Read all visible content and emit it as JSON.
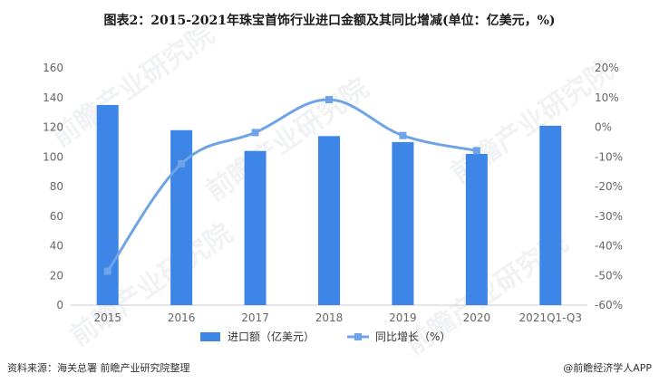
{
  "title": "图表2：2015-2021年珠宝首饰行业进口金额及其同比增减(单位：亿美元，%)",
  "source": "资料来源：海关总署 前瞻产业研究院整理",
  "brand": "@前瞻经济学人APP",
  "watermark": "前瞻产业研究院",
  "colors": {
    "bar": "#3d85e6",
    "line": "#6fa3e8",
    "axis_text": "#666666",
    "grid": "#e6e6e6"
  },
  "chart_data": {
    "type": "bar",
    "categories": [
      "2015",
      "2016",
      "2017",
      "2018",
      "2019",
      "2020",
      "2021Q1-Q3"
    ],
    "series": [
      {
        "name": "进口额（亿美元）",
        "type": "bar",
        "axis": "left",
        "values": [
          135,
          118,
          104,
          114,
          110,
          102,
          121
        ]
      },
      {
        "name": "同比增长（%）",
        "type": "line",
        "axis": "right",
        "values": [
          -48.6,
          -12.3,
          -1.8,
          9.3,
          -2.8,
          -7.9,
          null
        ]
      }
    ],
    "y_left": {
      "min": 0,
      "max": 160,
      "ticks": [
        0,
        20,
        40,
        60,
        80,
        100,
        120,
        140,
        160
      ]
    },
    "y_right": {
      "min": -60,
      "max": 20,
      "ticks": [
        -60,
        -50,
        -40,
        -30,
        -20,
        -10,
        0,
        10,
        20
      ],
      "tick_labels": [
        "-60%",
        "-50%",
        "-40%",
        "-30%",
        "-20%",
        "-10%",
        "0%",
        "10%",
        "20%"
      ]
    },
    "legend_position": "bottom"
  }
}
